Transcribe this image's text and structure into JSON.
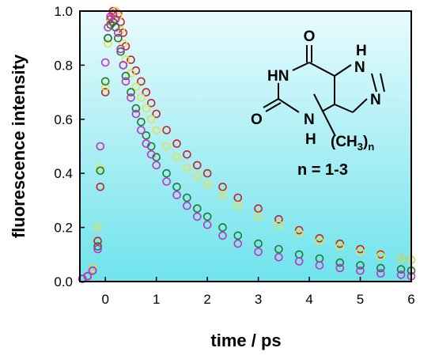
{
  "chart_data": {
    "type": "scatter",
    "title": "",
    "xlabel": "time / ps",
    "ylabel": "fluorescence intensity",
    "xlim": [
      -0.5,
      6
    ],
    "ylim": [
      0,
      1.0
    ],
    "xticks": [
      "0",
      "1",
      "2",
      "3",
      "4",
      "5",
      "6"
    ],
    "yticks": [
      "0.0",
      "0.2",
      "0.4",
      "0.6",
      "0.8",
      "1.0"
    ],
    "grid": false,
    "background": [
      "#e8fbfd",
      "#6fe3ec"
    ],
    "series": [
      {
        "color": "#c81e1e",
        "x": [
          -0.45,
          -0.35,
          -0.25,
          -0.15,
          -0.1,
          0.0,
          0.05,
          0.1,
          0.15,
          0.2,
          0.25,
          0.3,
          0.35,
          0.4,
          0.5,
          0.6,
          0.7,
          0.8,
          0.9,
          1.0,
          1.2,
          1.4,
          1.6,
          1.8,
          2.0,
          2.3,
          2.6,
          3.0,
          3.4,
          3.8,
          4.2,
          4.6,
          5.0,
          5.4,
          5.8,
          6.0
        ],
        "y": [
          0.01,
          0.02,
          0.05,
          0.15,
          0.35,
          0.7,
          0.9,
          0.97,
          1.0,
          1.0,
          0.99,
          0.96,
          0.92,
          0.87,
          0.82,
          0.78,
          0.74,
          0.7,
          0.66,
          0.62,
          0.56,
          0.51,
          0.47,
          0.43,
          0.4,
          0.35,
          0.31,
          0.27,
          0.23,
          0.19,
          0.16,
          0.14,
          0.12,
          0.1,
          0.085,
          0.08
        ]
      },
      {
        "color": "#e2e24a",
        "x": [
          -0.45,
          -0.35,
          -0.25,
          -0.15,
          -0.1,
          0.0,
          0.05,
          0.1,
          0.15,
          0.2,
          0.25,
          0.3,
          0.35,
          0.4,
          0.5,
          0.6,
          0.7,
          0.8,
          0.9,
          1.0,
          1.2,
          1.4,
          1.6,
          1.8,
          2.0,
          2.3,
          2.6,
          3.0,
          3.4,
          3.8,
          4.2,
          4.6,
          5.0,
          5.4,
          5.8,
          6.0
        ],
        "y": [
          0.01,
          0.02,
          0.05,
          0.2,
          0.42,
          0.72,
          0.88,
          0.96,
          0.99,
          1.0,
          0.98,
          0.93,
          0.88,
          0.82,
          0.77,
          0.72,
          0.68,
          0.64,
          0.6,
          0.56,
          0.5,
          0.46,
          0.42,
          0.39,
          0.36,
          0.32,
          0.28,
          0.24,
          0.21,
          0.18,
          0.15,
          0.13,
          0.11,
          0.095,
          0.085,
          0.08
        ]
      },
      {
        "color": "#1e7a2a",
        "x": [
          -0.45,
          -0.35,
          -0.25,
          -0.15,
          -0.1,
          0.0,
          0.05,
          0.1,
          0.15,
          0.2,
          0.25,
          0.3,
          0.35,
          0.4,
          0.5,
          0.6,
          0.7,
          0.8,
          0.9,
          1.0,
          1.2,
          1.4,
          1.6,
          1.8,
          2.0,
          2.3,
          2.6,
          3.0,
          3.4,
          3.8,
          4.2,
          4.6,
          5.0,
          5.4,
          5.8,
          6.0
        ],
        "y": [
          0.01,
          0.02,
          0.04,
          0.13,
          0.41,
          0.74,
          0.9,
          0.95,
          0.96,
          0.94,
          0.9,
          0.85,
          0.8,
          0.76,
          0.7,
          0.64,
          0.59,
          0.54,
          0.5,
          0.46,
          0.4,
          0.35,
          0.31,
          0.27,
          0.24,
          0.2,
          0.17,
          0.14,
          0.12,
          0.1,
          0.085,
          0.07,
          0.06,
          0.05,
          0.045,
          0.04
        ]
      },
      {
        "color": "#c030c0",
        "x": [
          -0.45,
          -0.35,
          -0.25,
          -0.15,
          -0.1,
          0.0,
          0.05,
          0.1,
          0.15,
          0.2,
          0.25,
          0.3,
          0.35,
          0.4,
          0.5,
          0.6,
          0.7,
          0.8,
          0.9,
          1.0,
          1.2,
          1.4,
          1.6,
          1.8,
          2.0,
          2.3,
          2.6,
          3.0,
          3.4,
          3.8,
          4.2,
          4.6,
          5.0,
          5.4,
          5.8,
          6.0
        ],
        "y": [
          0.01,
          0.02,
          0.04,
          0.12,
          0.5,
          0.81,
          0.94,
          0.98,
          0.99,
          0.97,
          0.92,
          0.86,
          0.8,
          0.74,
          0.68,
          0.62,
          0.56,
          0.51,
          0.47,
          0.43,
          0.37,
          0.32,
          0.28,
          0.24,
          0.21,
          0.17,
          0.14,
          0.11,
          0.09,
          0.075,
          0.06,
          0.05,
          0.04,
          0.03,
          0.025,
          0.02
        ]
      }
    ],
    "annotation": {
      "atoms": {
        "o_top": "O",
        "o_left": "O",
        "nh_ring": "HN",
        "nh_imid": "H",
        "n_imid_top": "N",
        "n_imid": "N",
        "n_bottom": "N",
        "h_bottom": "H",
        "methyl": "(CH",
        "methyl_sub": "3",
        "methyl_close": ")",
        "n_sub": "n"
      },
      "label": "n = 1-3"
    }
  }
}
